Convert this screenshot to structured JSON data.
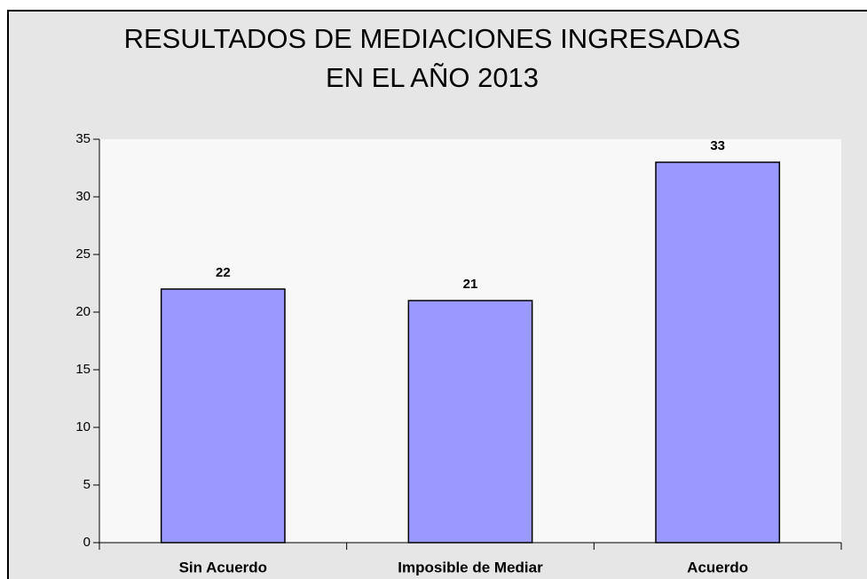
{
  "chart_data": {
    "type": "bar",
    "title": [
      "RESULTADOS DE MEDIACIONES INGRESADAS",
      "EN EL AÑO 2013"
    ],
    "categories": [
      "Sin Acuerdo",
      "Imposible de Mediar",
      "Acuerdo"
    ],
    "values": [
      22,
      21,
      33
    ],
    "color": "#9999ff",
    "ylim": [
      0,
      35
    ],
    "yticks": [
      0,
      5,
      10,
      15,
      20,
      25,
      30,
      35
    ]
  }
}
